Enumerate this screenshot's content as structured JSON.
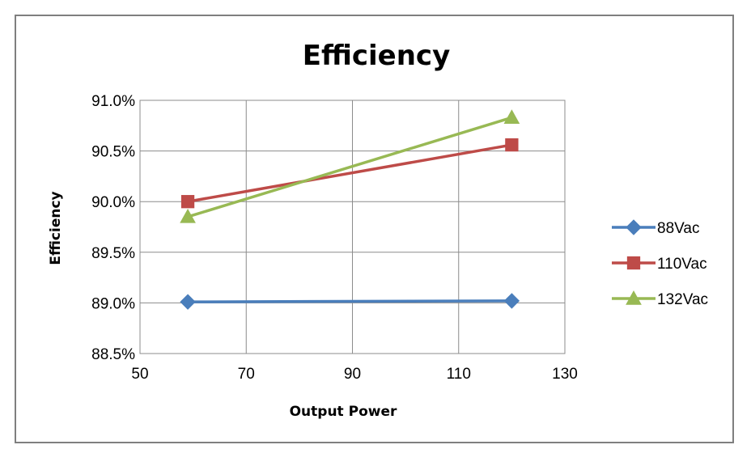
{
  "chart_data": {
    "type": "line",
    "title": "Efficiency",
    "xlabel": "Output Power",
    "ylabel": "Efficiency",
    "xlim": [
      50,
      130
    ],
    "ylim": [
      88.5,
      91.0
    ],
    "x_ticks": [
      50,
      70,
      90,
      110,
      130
    ],
    "x_tick_labels": [
      "50",
      "70",
      "90",
      "110",
      "130"
    ],
    "y_ticks": [
      88.5,
      89.0,
      89.5,
      90.0,
      90.5,
      91.0
    ],
    "y_tick_labels": [
      "88.5%",
      "89.0%",
      "89.5%",
      "90.0%",
      "90.5%",
      "91.0%"
    ],
    "grid": true,
    "legend_position": "right",
    "series": [
      {
        "name": "88Vac",
        "marker": "diamond",
        "color": "#4a7ebb",
        "x": [
          59,
          120
        ],
        "y": [
          89.01,
          89.02
        ]
      },
      {
        "name": "110Vac",
        "marker": "square",
        "color": "#be4b48",
        "x": [
          59,
          120
        ],
        "y": [
          90.0,
          90.56
        ]
      },
      {
        "name": "132Vac",
        "marker": "triangle",
        "color": "#98b954",
        "x": [
          59,
          120
        ],
        "y": [
          89.85,
          90.83
        ]
      }
    ]
  }
}
